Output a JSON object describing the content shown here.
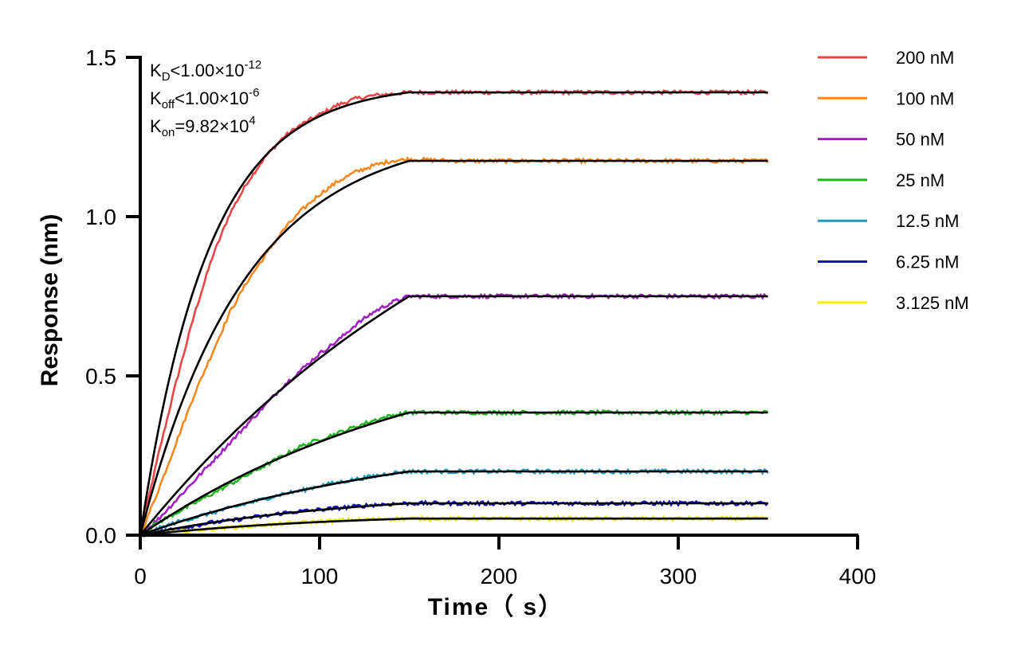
{
  "chart_data": {
    "type": "line",
    "xlabel": "Time（ s）",
    "ylabel": "Response (nm)",
    "xlim": [
      0,
      400
    ],
    "ylim": [
      0,
      1.5
    ],
    "x_ticks": [
      "0",
      "100",
      "200",
      "300",
      "400"
    ],
    "y_ticks": [
      "0.0",
      "0.5",
      "1.0",
      "1.5"
    ],
    "x_tick_values": [
      0,
      100,
      200,
      300,
      400
    ],
    "y_tick_values": [
      0,
      0.5,
      1.0,
      1.5
    ],
    "grid": false,
    "legend_position": "top-right",
    "annotations": {
      "kd": {
        "k": "K",
        "sub": "D",
        "rel": "<1.00×10",
        "sup": "-12"
      },
      "koff": {
        "k": "K",
        "sub": "off",
        "rel": "<1.00×10",
        "sup": "-6"
      },
      "kon": {
        "k": "K",
        "sub": "on",
        "rel": "=9.82×10",
        "sup": "4"
      }
    },
    "fit_color": "#000000",
    "association_end": 150,
    "x_end": 350,
    "series": [
      {
        "name": "200 nM",
        "color": "#e8474a",
        "x": [
          0,
          10,
          20,
          30,
          40,
          50,
          60,
          70,
          80,
          90,
          100,
          110,
          120,
          130,
          140,
          150,
          175,
          200,
          250,
          300,
          350
        ],
        "values": [
          0,
          0.25,
          0.48,
          0.69,
          0.87,
          1.01,
          1.11,
          1.19,
          1.25,
          1.29,
          1.32,
          1.35,
          1.37,
          1.38,
          1.385,
          1.39,
          1.39,
          1.39,
          1.39,
          1.39,
          1.39
        ]
      },
      {
        "name": "100 nM",
        "color": "#f5891f",
        "x": [
          0,
          10,
          20,
          30,
          40,
          50,
          60,
          70,
          80,
          90,
          100,
          110,
          120,
          130,
          140,
          150,
          175,
          200,
          250,
          300,
          350
        ],
        "values": [
          0,
          0.14,
          0.29,
          0.44,
          0.57,
          0.7,
          0.8,
          0.88,
          0.96,
          1.02,
          1.07,
          1.11,
          1.14,
          1.16,
          1.175,
          1.18,
          1.175,
          1.175,
          1.175,
          1.175,
          1.175
        ]
      },
      {
        "name": "50 nM",
        "color": "#a320c4",
        "x": [
          0,
          10,
          20,
          30,
          40,
          50,
          60,
          70,
          80,
          90,
          100,
          110,
          120,
          130,
          140,
          150,
          175,
          200,
          250,
          300,
          350
        ],
        "values": [
          0,
          0.05,
          0.11,
          0.17,
          0.23,
          0.29,
          0.35,
          0.41,
          0.47,
          0.52,
          0.57,
          0.61,
          0.66,
          0.7,
          0.73,
          0.75,
          0.75,
          0.75,
          0.75,
          0.75,
          0.75
        ]
      },
      {
        "name": "25 nM",
        "color": "#1fb722",
        "x": [
          0,
          10,
          20,
          30,
          40,
          50,
          60,
          70,
          80,
          90,
          100,
          110,
          120,
          130,
          140,
          150,
          175,
          200,
          250,
          300,
          350
        ],
        "values": [
          0,
          0.04,
          0.07,
          0.1,
          0.13,
          0.16,
          0.19,
          0.22,
          0.25,
          0.28,
          0.3,
          0.32,
          0.34,
          0.36,
          0.375,
          0.385,
          0.385,
          0.385,
          0.385,
          0.385,
          0.385
        ]
      },
      {
        "name": "12.5 nM",
        "color": "#1f9bbf",
        "x": [
          0,
          10,
          20,
          30,
          40,
          50,
          60,
          70,
          80,
          90,
          100,
          110,
          120,
          130,
          140,
          150,
          175,
          200,
          250,
          300,
          350
        ],
        "values": [
          0,
          0.02,
          0.04,
          0.055,
          0.07,
          0.085,
          0.1,
          0.115,
          0.13,
          0.14,
          0.155,
          0.165,
          0.175,
          0.185,
          0.195,
          0.2,
          0.2,
          0.2,
          0.2,
          0.2,
          0.2
        ]
      },
      {
        "name": "6.25 nM",
        "color": "#1414c8",
        "x": [
          0,
          10,
          20,
          30,
          40,
          50,
          60,
          70,
          80,
          90,
          100,
          110,
          120,
          130,
          140,
          150,
          175,
          200,
          250,
          300,
          350
        ],
        "values": [
          0,
          0.01,
          0.02,
          0.03,
          0.04,
          0.045,
          0.055,
          0.06,
          0.07,
          0.075,
          0.08,
          0.085,
          0.09,
          0.095,
          0.098,
          0.1,
          0.1,
          0.1,
          0.1,
          0.1,
          0.1
        ]
      },
      {
        "name": "3.125 nM",
        "color": "#f2ea22",
        "x": [
          0,
          10,
          20,
          30,
          40,
          50,
          60,
          70,
          80,
          90,
          100,
          110,
          120,
          130,
          140,
          150,
          175,
          200,
          250,
          300,
          350
        ],
        "values": [
          0,
          0.005,
          0.01,
          0.015,
          0.02,
          0.024,
          0.028,
          0.032,
          0.036,
          0.04,
          0.043,
          0.046,
          0.048,
          0.05,
          0.051,
          0.052,
          0.052,
          0.052,
          0.052,
          0.052,
          0.052
        ]
      }
    ]
  }
}
